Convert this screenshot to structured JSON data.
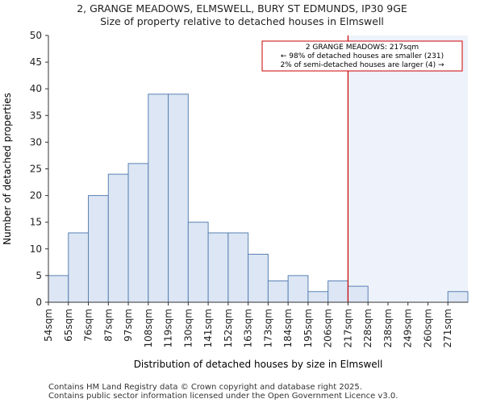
{
  "header": {
    "title": "2, GRANGE MEADOWS, ELMSWELL, BURY ST EDMUNDS, IP30 9GE",
    "subtitle": "Size of property relative to detached houses in Elmswell"
  },
  "footer": {
    "line1": "Contains HM Land Registry data © Crown copyright and database right 2025.",
    "line2": "Contains public sector information licensed under the Open Government Licence v3.0."
  },
  "chart_data": {
    "type": "bar",
    "title": "2, GRANGE MEADOWS, ELMSWELL, BURY ST EDMUNDS, IP30 9GE",
    "subtitle": "Size of property relative to detached houses in Elmswell",
    "xlabel": "Distribution of detached houses by size in Elmswell",
    "ylabel": "Number of detached properties",
    "bin_edges": [
      "54sqm",
      "65sqm",
      "76sqm",
      "87sqm",
      "97sqm",
      "108sqm",
      "119sqm",
      "130sqm",
      "141sqm",
      "152sqm",
      "163sqm",
      "173sqm",
      "184sqm",
      "195sqm",
      "206sqm",
      "217sqm",
      "228sqm",
      "238sqm",
      "249sqm",
      "260sqm",
      "271sqm"
    ],
    "values": [
      5,
      13,
      20,
      24,
      26,
      39,
      39,
      15,
      13,
      13,
      9,
      4,
      5,
      2,
      4,
      3,
      0,
      0,
      0,
      0,
      2
    ],
    "ylim": [
      0,
      50
    ],
    "yticks": [
      0,
      5,
      10,
      15,
      20,
      25,
      30,
      35,
      40,
      45,
      50
    ],
    "marker": {
      "at_edge_index": 15,
      "label": "217sqm",
      "color": "#cc0000"
    },
    "annotation": {
      "line1": "2 GRANGE MEADOWS: 217sqm",
      "line2": "← 98% of detached houses are smaller (231)",
      "line3": "2% of semi-detached houses are larger (4) →"
    },
    "colors": {
      "bar_fill": "#dce6f4",
      "bar_stroke": "#5a82b4",
      "highlight_fill": "#eef2fa"
    }
  }
}
